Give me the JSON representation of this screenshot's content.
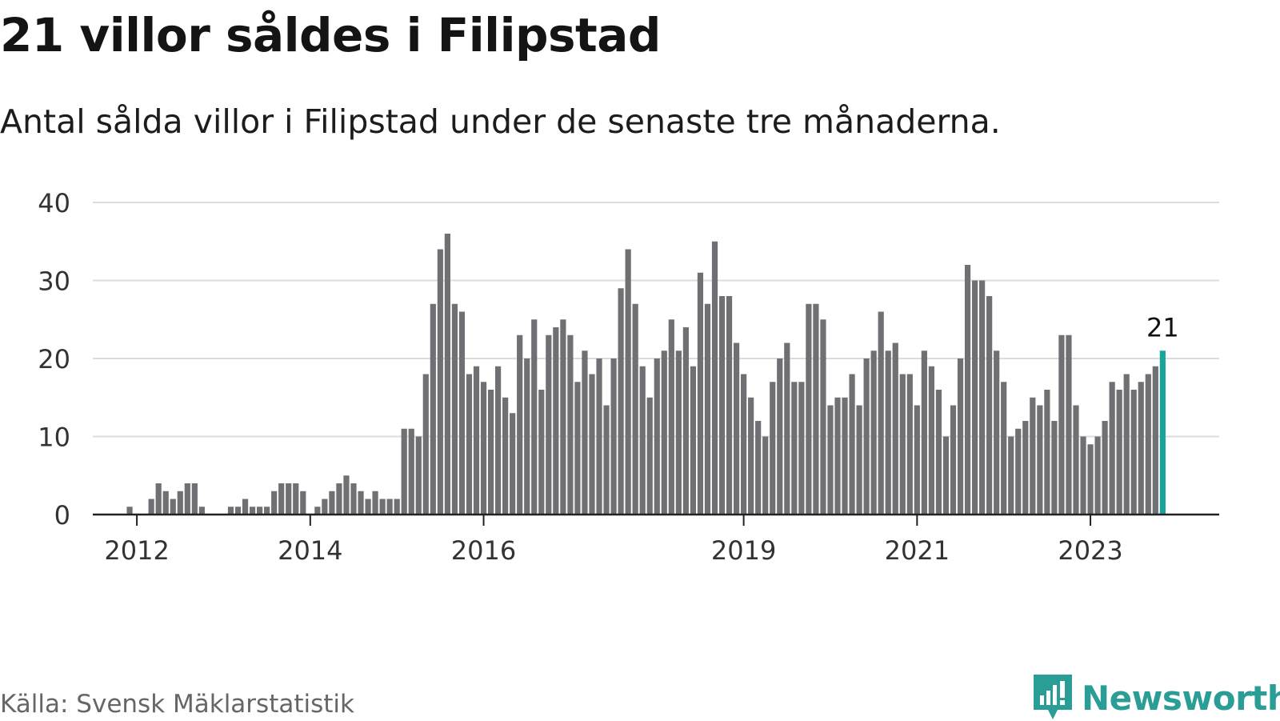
{
  "header": {
    "title": "21 villor såldes i Filipstad",
    "subtitle": "Antal sålda villor i Filipstad under de senaste tre månaderna."
  },
  "footer": {
    "source": "Källa: Svensk Mäklarstatistik",
    "brand": "Newsworthy",
    "brand_icon": "newsworthy-logo-icon"
  },
  "colors": {
    "bar": "#707074",
    "highlight": "#1aa39b",
    "grid": "#dcdcdc",
    "axis": "#222222",
    "brand": "#2a9d96"
  },
  "chart_data": {
    "type": "bar",
    "x_start": "2011-10",
    "x_interval": "month",
    "x_ticks": [
      "2012",
      "2014",
      "2016",
      "2019",
      "2021",
      "2023"
    ],
    "y_ticks": [
      0,
      10,
      20,
      30,
      40
    ],
    "ylim": [
      0,
      40
    ],
    "grid": true,
    "highlight_last": true,
    "annotation": "21",
    "values": [
      0,
      0,
      1,
      0,
      0,
      2,
      4,
      3,
      2,
      3,
      4,
      4,
      1,
      0,
      0,
      0,
      1,
      1,
      2,
      1,
      1,
      1,
      3,
      4,
      4,
      4,
      3,
      0,
      1,
      2,
      3,
      4,
      5,
      4,
      3,
      2,
      3,
      2,
      2,
      2,
      11,
      11,
      10,
      18,
      27,
      34,
      36,
      27,
      26,
      18,
      19,
      17,
      16,
      19,
      15,
      13,
      23,
      20,
      25,
      16,
      23,
      24,
      25,
      23,
      17,
      21,
      18,
      20,
      14,
      20,
      29,
      34,
      27,
      19,
      15,
      20,
      21,
      25,
      21,
      24,
      19,
      31,
      27,
      35,
      28,
      28,
      22,
      18,
      15,
      12,
      10,
      17,
      20,
      22,
      17,
      17,
      27,
      27,
      25,
      14,
      15,
      15,
      18,
      14,
      20,
      21,
      26,
      21,
      22,
      18,
      18,
      14,
      21,
      19,
      16,
      10,
      14,
      20,
      32,
      30,
      30,
      28,
      21,
      17,
      10,
      11,
      12,
      15,
      14,
      16,
      12,
      23,
      23,
      14,
      10,
      9,
      10,
      12,
      17,
      16,
      18,
      16,
      17,
      18,
      19,
      21
    ]
  }
}
